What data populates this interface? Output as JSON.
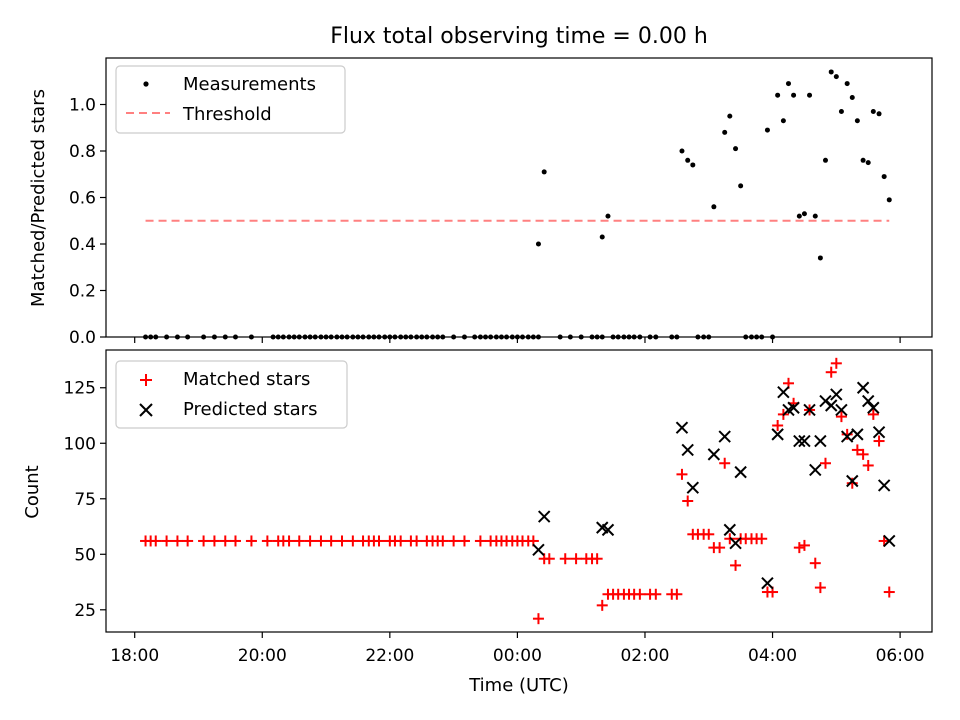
{
  "title": "Flux total observing time = 0.00 h",
  "colors": {
    "measurement": "#000000",
    "threshold": "#ff8080",
    "matched": "#ff0000",
    "predicted": "#000000"
  },
  "chart_data": [
    {
      "type": "scatter",
      "ylabel": "Matched/Predicted stars",
      "ylim": [
        0,
        1.2
      ],
      "yticks": [
        0.0,
        0.2,
        0.4,
        0.6,
        0.8,
        1.0
      ],
      "yticklabels": [
        "0.0",
        "0.2",
        "0.4",
        "0.6",
        "0.8",
        "1.0"
      ],
      "xlim_hours": [
        17.55,
        30.5
      ],
      "legend": {
        "location": "upper-left",
        "entries": [
          {
            "label": "Measurements",
            "marker": "dot"
          },
          {
            "label": "Threshold",
            "marker": "dashed-line"
          }
        ]
      },
      "threshold": {
        "value": 0.5,
        "x_start": 18.17,
        "x_end": 29.83
      },
      "series": [
        {
          "name": "Measurements",
          "points": [
            [
              18.17,
              0
            ],
            [
              18.25,
              0
            ],
            [
              18.33,
              0
            ],
            [
              18.5,
              0
            ],
            [
              18.67,
              0
            ],
            [
              18.83,
              0
            ],
            [
              19.08,
              0
            ],
            [
              19.25,
              0
            ],
            [
              19.42,
              0
            ],
            [
              19.58,
              0
            ],
            [
              19.83,
              0
            ],
            [
              20.17,
              0
            ],
            [
              20.25,
              0
            ],
            [
              20.33,
              0
            ],
            [
              20.42,
              0
            ],
            [
              20.5,
              0
            ],
            [
              20.58,
              0
            ],
            [
              20.67,
              0
            ],
            [
              20.75,
              0
            ],
            [
              20.83,
              0
            ],
            [
              20.92,
              0
            ],
            [
              21.0,
              0
            ],
            [
              21.08,
              0
            ],
            [
              21.17,
              0
            ],
            [
              21.25,
              0
            ],
            [
              21.33,
              0
            ],
            [
              21.42,
              0
            ],
            [
              21.5,
              0
            ],
            [
              21.58,
              0
            ],
            [
              21.67,
              0
            ],
            [
              21.75,
              0
            ],
            [
              21.83,
              0
            ],
            [
              21.92,
              0
            ],
            [
              22.0,
              0
            ],
            [
              22.08,
              0
            ],
            [
              22.17,
              0
            ],
            [
              22.25,
              0
            ],
            [
              22.33,
              0
            ],
            [
              22.42,
              0
            ],
            [
              22.5,
              0
            ],
            [
              22.58,
              0
            ],
            [
              22.67,
              0
            ],
            [
              22.75,
              0
            ],
            [
              22.83,
              0
            ],
            [
              23.0,
              0
            ],
            [
              23.17,
              0
            ],
            [
              23.33,
              0
            ],
            [
              23.42,
              0
            ],
            [
              23.5,
              0
            ],
            [
              23.58,
              0
            ],
            [
              23.67,
              0
            ],
            [
              23.75,
              0
            ],
            [
              23.83,
              0
            ],
            [
              23.92,
              0
            ],
            [
              24.0,
              0
            ],
            [
              24.08,
              0
            ],
            [
              24.17,
              0
            ],
            [
              24.25,
              0
            ],
            [
              24.33,
              0
            ],
            [
              24.33,
              0.4
            ],
            [
              24.42,
              0.71
            ],
            [
              24.67,
              0
            ],
            [
              24.83,
              0
            ],
            [
              25.0,
              0
            ],
            [
              25.17,
              0
            ],
            [
              25.25,
              0
            ],
            [
              25.33,
              0
            ],
            [
              25.33,
              0.43
            ],
            [
              25.42,
              0.52
            ],
            [
              25.5,
              0
            ],
            [
              25.58,
              0
            ],
            [
              25.67,
              0
            ],
            [
              25.75,
              0
            ],
            [
              25.83,
              0
            ],
            [
              25.92,
              0
            ],
            [
              26.08,
              0
            ],
            [
              26.17,
              0
            ],
            [
              26.42,
              0
            ],
            [
              26.5,
              0
            ],
            [
              26.58,
              0.8
            ],
            [
              26.67,
              0.76
            ],
            [
              26.75,
              0.74
            ],
            [
              26.83,
              0
            ],
            [
              26.92,
              0
            ],
            [
              27.0,
              0
            ],
            [
              27.08,
              0.56
            ],
            [
              27.25,
              0.88
            ],
            [
              27.33,
              0.95
            ],
            [
              27.42,
              0.81
            ],
            [
              27.5,
              0.65
            ],
            [
              27.58,
              0
            ],
            [
              27.67,
              0
            ],
            [
              27.75,
              0
            ],
            [
              27.83,
              0
            ],
            [
              27.92,
              0.89
            ],
            [
              28.0,
              0
            ],
            [
              28.08,
              1.04
            ],
            [
              28.17,
              0.93
            ],
            [
              28.25,
              1.09
            ],
            [
              28.33,
              1.04
            ],
            [
              28.42,
              0.52
            ],
            [
              28.5,
              0.53
            ],
            [
              28.58,
              1.04
            ],
            [
              28.67,
              0.52
            ],
            [
              28.75,
              0.34
            ],
            [
              28.83,
              0.76
            ],
            [
              28.92,
              1.14
            ],
            [
              29.0,
              1.12
            ],
            [
              29.08,
              0.97
            ],
            [
              29.17,
              1.09
            ],
            [
              29.25,
              1.03
            ],
            [
              29.33,
              0.93
            ],
            [
              29.42,
              0.76
            ],
            [
              29.5,
              0.75
            ],
            [
              29.58,
              0.97
            ],
            [
              29.67,
              0.96
            ],
            [
              29.75,
              0.69
            ],
            [
              29.83,
              0.59
            ]
          ]
        }
      ]
    },
    {
      "type": "scatter",
      "ylabel": "Count",
      "xlabel": "Time (UTC)",
      "ylim": [
        15,
        142
      ],
      "yticks": [
        25,
        50,
        75,
        100,
        125
      ],
      "yticklabels": [
        "25",
        "50",
        "75",
        "100",
        "125"
      ],
      "xlim_hours": [
        17.55,
        30.5
      ],
      "xticks_hours": [
        18,
        20,
        22,
        24,
        26,
        28,
        30
      ],
      "xticklabels": [
        "18:00",
        "20:00",
        "22:00",
        "00:00",
        "02:00",
        "04:00",
        "06:00"
      ],
      "legend": {
        "location": "upper-left",
        "entries": [
          {
            "label": "Matched stars",
            "marker": "plus"
          },
          {
            "label": "Predicted stars",
            "marker": "x"
          }
        ]
      },
      "series": [
        {
          "name": "Matched stars",
          "points": [
            [
              18.17,
              56
            ],
            [
              18.25,
              56
            ],
            [
              18.33,
              56
            ],
            [
              18.5,
              56
            ],
            [
              18.67,
              56
            ],
            [
              18.83,
              56
            ],
            [
              19.08,
              56
            ],
            [
              19.25,
              56
            ],
            [
              19.42,
              56
            ],
            [
              19.58,
              56
            ],
            [
              19.83,
              56
            ],
            [
              20.08,
              56
            ],
            [
              20.25,
              56
            ],
            [
              20.33,
              56
            ],
            [
              20.42,
              56
            ],
            [
              20.58,
              56
            ],
            [
              20.75,
              56
            ],
            [
              20.92,
              56
            ],
            [
              21.08,
              56
            ],
            [
              21.25,
              56
            ],
            [
              21.42,
              56
            ],
            [
              21.58,
              56
            ],
            [
              21.67,
              56
            ],
            [
              21.75,
              56
            ],
            [
              21.83,
              56
            ],
            [
              22.0,
              56
            ],
            [
              22.08,
              56
            ],
            [
              22.17,
              56
            ],
            [
              22.33,
              56
            ],
            [
              22.42,
              56
            ],
            [
              22.58,
              56
            ],
            [
              22.67,
              56
            ],
            [
              22.75,
              56
            ],
            [
              22.83,
              56
            ],
            [
              23.0,
              56
            ],
            [
              23.17,
              56
            ],
            [
              23.42,
              56
            ],
            [
              23.58,
              56
            ],
            [
              23.67,
              56
            ],
            [
              23.75,
              56
            ],
            [
              23.83,
              56
            ],
            [
              23.92,
              56
            ],
            [
              24.0,
              56
            ],
            [
              24.08,
              56
            ],
            [
              24.17,
              56
            ],
            [
              24.25,
              56
            ],
            [
              24.33,
              21
            ],
            [
              24.42,
              48
            ],
            [
              24.5,
              48
            ],
            [
              24.75,
              48
            ],
            [
              24.92,
              48
            ],
            [
              25.08,
              48
            ],
            [
              25.17,
              48
            ],
            [
              25.25,
              48
            ],
            [
              25.33,
              27
            ],
            [
              25.42,
              32
            ],
            [
              25.5,
              32
            ],
            [
              25.58,
              32
            ],
            [
              25.67,
              32
            ],
            [
              25.75,
              32
            ],
            [
              25.83,
              32
            ],
            [
              25.92,
              32
            ],
            [
              26.08,
              32
            ],
            [
              26.17,
              32
            ],
            [
              26.42,
              32
            ],
            [
              26.5,
              32
            ],
            [
              26.58,
              86
            ],
            [
              26.67,
              74
            ],
            [
              26.75,
              59
            ],
            [
              26.83,
              59
            ],
            [
              26.92,
              59
            ],
            [
              27.0,
              59
            ],
            [
              27.08,
              53
            ],
            [
              27.17,
              53
            ],
            [
              27.25,
              91
            ],
            [
              27.33,
              57
            ],
            [
              27.42,
              45
            ],
            [
              27.5,
              57
            ],
            [
              27.58,
              57
            ],
            [
              27.67,
              57
            ],
            [
              27.75,
              57
            ],
            [
              27.83,
              57
            ],
            [
              27.92,
              33
            ],
            [
              28.0,
              33
            ],
            [
              28.08,
              108
            ],
            [
              28.17,
              113
            ],
            [
              28.25,
              127
            ],
            [
              28.33,
              118
            ],
            [
              28.42,
              53
            ],
            [
              28.5,
              54
            ],
            [
              28.58,
              115
            ],
            [
              28.67,
              46
            ],
            [
              28.75,
              35
            ],
            [
              28.83,
              91
            ],
            [
              28.92,
              132
            ],
            [
              29.0,
              136
            ],
            [
              29.08,
              112
            ],
            [
              29.17,
              104
            ],
            [
              29.25,
              82
            ],
            [
              29.33,
              97
            ],
            [
              29.42,
              95
            ],
            [
              29.5,
              90
            ],
            [
              29.58,
              113
            ],
            [
              29.67,
              101
            ],
            [
              29.75,
              56
            ],
            [
              29.83,
              33
            ]
          ]
        },
        {
          "name": "Predicted stars",
          "points": [
            [
              24.33,
              52
            ],
            [
              24.42,
              67
            ],
            [
              25.33,
              62
            ],
            [
              25.42,
              61
            ],
            [
              26.58,
              107
            ],
            [
              26.67,
              97
            ],
            [
              26.75,
              80
            ],
            [
              27.08,
              95
            ],
            [
              27.25,
              103
            ],
            [
              27.33,
              61
            ],
            [
              27.42,
              55
            ],
            [
              27.5,
              87
            ],
            [
              27.92,
              37
            ],
            [
              28.08,
              104
            ],
            [
              28.17,
              123
            ],
            [
              28.25,
              115
            ],
            [
              28.33,
              116
            ],
            [
              28.42,
              101
            ],
            [
              28.5,
              101
            ],
            [
              28.58,
              115
            ],
            [
              28.67,
              88
            ],
            [
              28.75,
              101
            ],
            [
              28.83,
              119
            ],
            [
              28.92,
              117
            ],
            [
              29.0,
              122
            ],
            [
              29.08,
              115
            ],
            [
              29.17,
              103
            ],
            [
              29.25,
              83
            ],
            [
              29.33,
              104
            ],
            [
              29.42,
              125
            ],
            [
              29.5,
              119
            ],
            [
              29.58,
              116
            ],
            [
              29.67,
              105
            ],
            [
              29.75,
              81
            ],
            [
              29.83,
              56
            ]
          ]
        }
      ]
    }
  ]
}
